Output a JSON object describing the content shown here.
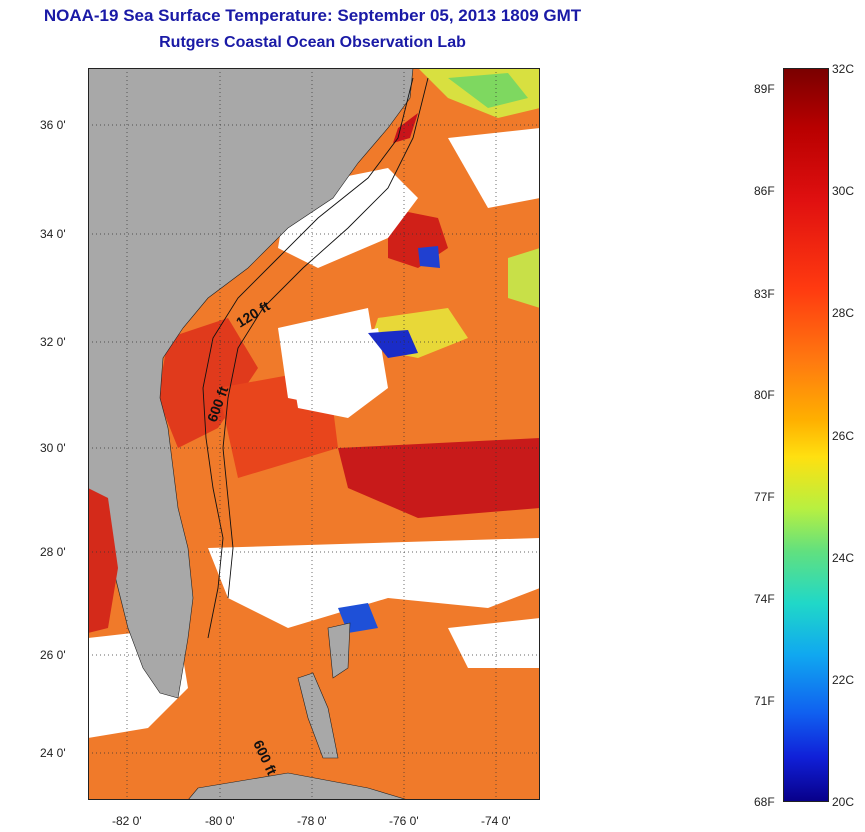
{
  "header": {
    "title": "NOAA-19 Sea Surface Temperature:  September 05, 2013 1809 GMT",
    "subtitle": "Rutgers Coastal Ocean Observation Lab"
  },
  "map": {
    "latitude_labels": [
      "36 0'",
      "34 0'",
      "32 0'",
      "30 0'",
      "28 0'",
      "26 0'",
      "24 0'"
    ],
    "longitude_labels": [
      "-82 0'",
      "-80 0'",
      "-78 0'",
      "-76 0'",
      "-74 0'"
    ],
    "isobath_labels": [
      "120 ft",
      "600 ft",
      "600 ft"
    ],
    "colors": {
      "land": "#a8a8a8",
      "no_data": "#ffffff",
      "warm": "#e8481a",
      "hot": "#b81018",
      "cool": "#1a3cc8"
    }
  },
  "colorbar": {
    "fahrenheit_labels": [
      "89F",
      "86F",
      "83F",
      "80F",
      "77F",
      "74F",
      "71F",
      "68F"
    ],
    "celsius_labels": [
      "32C",
      "30C",
      "28C",
      "26C",
      "24C",
      "22C",
      "20C"
    ]
  }
}
